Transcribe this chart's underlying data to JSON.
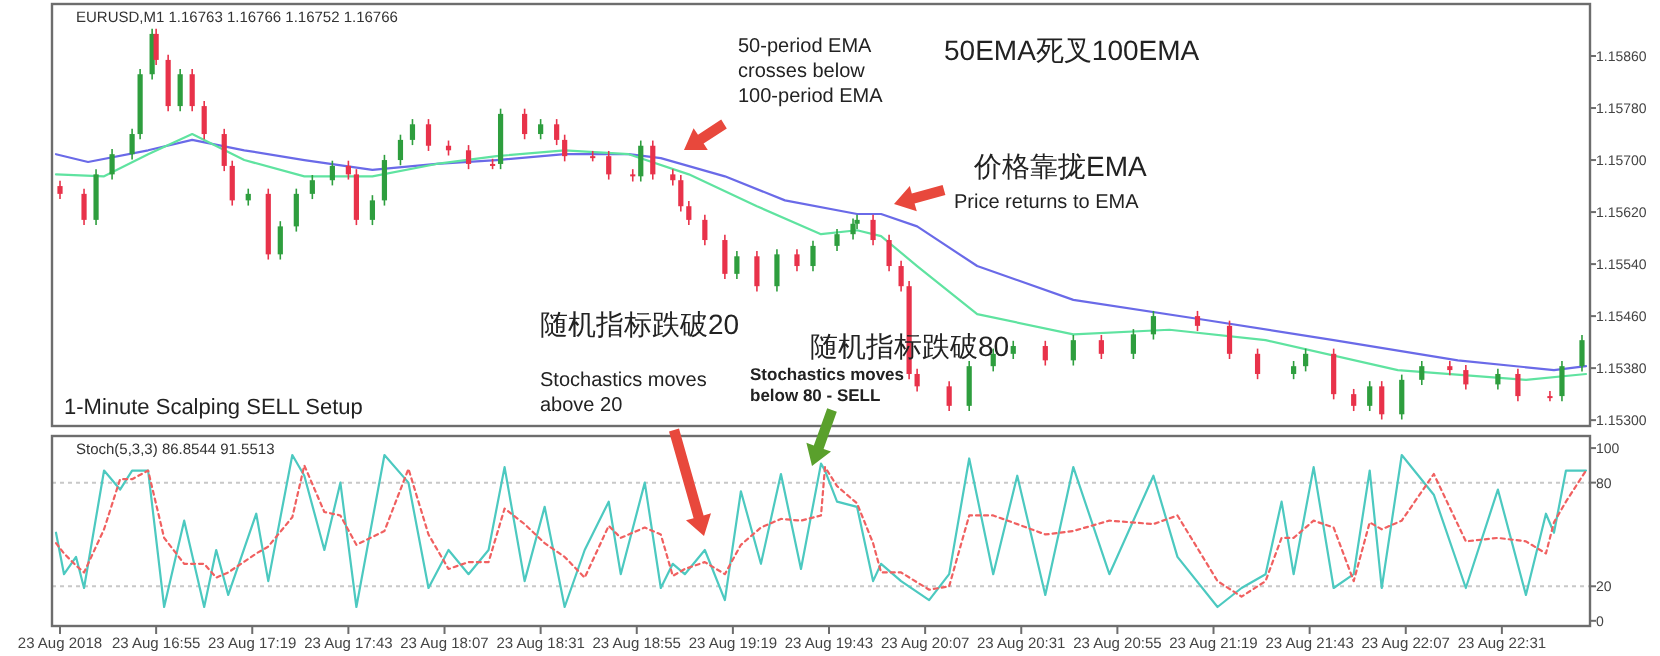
{
  "chart_data": [
    {
      "type": "candlestick",
      "title": "EURUSD,M1  1.16763 1.16766 1.16752 1.16766",
      "xlim": [
        "2018-08-23T16:29",
        "2018-08-23T22:53"
      ],
      "ylim": [
        1.15291,
        1.1594
      ],
      "tick_labels": "y",
      "yticks": [
        {
          "value": 1.153,
          "label": "1.15300"
        },
        {
          "value": 1.1538,
          "label": "1.15380"
        },
        {
          "value": 1.1546,
          "label": "1.15460"
        },
        {
          "value": 1.1554,
          "label": "1.15540"
        },
        {
          "value": 1.1562,
          "label": "1.15620"
        },
        {
          "value": 1.157,
          "label": "1.15700"
        },
        {
          "value": 1.1578,
          "label": "1.15780"
        },
        {
          "value": 1.1586,
          "label": "1.15860"
        }
      ],
      "x": [
        "2018-08-23T16:31",
        "2018-08-23T16:37",
        "2018-08-23T16:40",
        "2018-08-23T16:44",
        "2018-08-23T16:49",
        "2018-08-23T16:51",
        "2018-08-23T16:54",
        "2018-08-23T16:55",
        "2018-08-23T16:58",
        "2018-08-23T17:01",
        "2018-08-23T17:04",
        "2018-08-23T17:07",
        "2018-08-23T17:12",
        "2018-08-23T17:14",
        "2018-08-23T17:18",
        "2018-08-23T17:23",
        "2018-08-23T17:26",
        "2018-08-23T17:30",
        "2018-08-23T17:34",
        "2018-08-23T17:39",
        "2018-08-23T17:43",
        "2018-08-23T17:45",
        "2018-08-23T17:49",
        "2018-08-23T17:52",
        "2018-08-23T17:56",
        "2018-08-23T17:59",
        "2018-08-23T18:03",
        "2018-08-23T18:08",
        "2018-08-23T18:13",
        "2018-08-23T18:19",
        "2018-08-23T18:21",
        "2018-08-23T18:27",
        "2018-08-23T18:31",
        "2018-08-23T18:35",
        "2018-08-23T18:37",
        "2018-08-23T18:44",
        "2018-08-23T18:48",
        "2018-08-23T18:54",
        "2018-08-23T18:56",
        "2018-08-23T18:59",
        "2018-08-23T19:04",
        "2018-08-23T19:06",
        "2018-08-23T19:08",
        "2018-08-23T19:12",
        "2018-08-23T19:17",
        "2018-08-23T19:20",
        "2018-08-23T19:25",
        "2018-08-23T19:30",
        "2018-08-23T19:35",
        "2018-08-23T19:39",
        "2018-08-23T19:45",
        "2018-08-23T19:49",
        "2018-08-23T19:50",
        "2018-08-23T19:54",
        "2018-08-23T19:58",
        "2018-08-23T20:01",
        "2018-08-23T20:03",
        "2018-08-23T20:05",
        "2018-08-23T20:13",
        "2018-08-23T20:18",
        "2018-08-23T20:24",
        "2018-08-23T20:29",
        "2018-08-23T20:37",
        "2018-08-23T20:44",
        "2018-08-23T20:51",
        "2018-08-23T20:59",
        "2018-08-23T21:04",
        "2018-08-23T21:15",
        "2018-08-23T21:23",
        "2018-08-23T21:30",
        "2018-08-23T21:39",
        "2018-08-23T21:42",
        "2018-08-23T21:49",
        "2018-08-23T21:54",
        "2018-08-23T21:58",
        "2018-08-23T22:01",
        "2018-08-23T22:06",
        "2018-08-23T22:11",
        "2018-08-23T22:18",
        "2018-08-23T22:22",
        "2018-08-23T22:30",
        "2018-08-23T22:35",
        "2018-08-23T22:43",
        "2018-08-23T22:46",
        "2018-08-23T22:51"
      ],
      "ohlc": [
        [
          1.1566,
          1.15668,
          1.1564,
          1.15648
        ],
        [
          1.15648,
          1.15656,
          1.156,
          1.15608
        ],
        [
          1.15608,
          1.15686,
          1.156,
          1.15678
        ],
        [
          1.15678,
          1.15717,
          1.1567,
          1.15709
        ],
        [
          1.15709,
          1.15748,
          1.15701,
          1.1574
        ],
        [
          1.1574,
          1.1584,
          1.15732,
          1.15832
        ],
        [
          1.15832,
          1.15902,
          1.15824,
          1.15894
        ],
        [
          1.15894,
          1.15902,
          1.15846,
          1.15854
        ],
        [
          1.15854,
          1.15862,
          1.15775,
          1.15783
        ],
        [
          1.15783,
          1.1584,
          1.15775,
          1.15832
        ],
        [
          1.15832,
          1.1584,
          1.15775,
          1.15783
        ],
        [
          1.15783,
          1.15791,
          1.15732,
          1.1574
        ],
        [
          1.1574,
          1.15748,
          1.15683,
          1.15691
        ],
        [
          1.15691,
          1.15699,
          1.1563,
          1.15638
        ],
        [
          1.15638,
          1.15656,
          1.1563,
          1.15648
        ],
        [
          1.15648,
          1.15656,
          1.15547,
          1.15555
        ],
        [
          1.15555,
          1.15606,
          1.15547,
          1.15598
        ],
        [
          1.15598,
          1.15656,
          1.1559,
          1.15648
        ],
        [
          1.15648,
          1.15677,
          1.1564,
          1.15669
        ],
        [
          1.15669,
          1.15699,
          1.15661,
          1.15691
        ],
        [
          1.15691,
          1.15699,
          1.1567,
          1.15678
        ],
        [
          1.15678,
          1.15686,
          1.156,
          1.15608
        ],
        [
          1.15608,
          1.15646,
          1.156,
          1.15638
        ],
        [
          1.15638,
          1.15708,
          1.1563,
          1.157
        ],
        [
          1.157,
          1.15739,
          1.15692,
          1.15731
        ],
        [
          1.15731,
          1.15763,
          1.15723,
          1.15755
        ],
        [
          1.15755,
          1.15763,
          1.15714,
          1.15722
        ],
        [
          1.15722,
          1.1573,
          1.15707,
          1.15715
        ],
        [
          1.15715,
          1.15723,
          1.15686,
          1.15694
        ],
        [
          1.15694,
          1.15702,
          1.15686,
          1.15694
        ],
        [
          1.15694,
          1.15779,
          1.15686,
          1.15771
        ],
        [
          1.15771,
          1.15779,
          1.15732,
          1.1574
        ],
        [
          1.1574,
          1.15763,
          1.15732,
          1.15755
        ],
        [
          1.15755,
          1.15763,
          1.15723,
          1.15731
        ],
        [
          1.15731,
          1.15739,
          1.15698,
          1.15706
        ],
        [
          1.15706,
          1.15714,
          1.15698,
          1.15706
        ],
        [
          1.15706,
          1.15714,
          1.1567,
          1.15678
        ],
        [
          1.15678,
          1.15686,
          1.15667,
          1.15675
        ],
        [
          1.15675,
          1.1573,
          1.15667,
          1.15722
        ],
        [
          1.15722,
          1.1573,
          1.1567,
          1.15678
        ],
        [
          1.15678,
          1.15686,
          1.15661,
          1.15669
        ],
        [
          1.15669,
          1.15677,
          1.15621,
          1.15629
        ],
        [
          1.15629,
          1.15637,
          1.156,
          1.15608
        ],
        [
          1.15608,
          1.15616,
          1.15569,
          1.15577
        ],
        [
          1.15577,
          1.15585,
          1.15517,
          1.15525
        ],
        [
          1.15525,
          1.1556,
          1.15517,
          1.15552
        ],
        [
          1.15552,
          1.1556,
          1.15498,
          1.15506
        ],
        [
          1.15506,
          1.15563,
          1.15498,
          1.15555
        ],
        [
          1.15555,
          1.15563,
          1.15529,
          1.15537
        ],
        [
          1.15537,
          1.15576,
          1.15529,
          1.15568
        ],
        [
          1.15568,
          1.15594,
          1.1556,
          1.15586
        ],
        [
          1.15586,
          1.1561,
          1.15578,
          1.15602
        ],
        [
          1.15602,
          1.15616,
          1.15594,
          1.15608
        ],
        [
          1.15608,
          1.15616,
          1.15569,
          1.15577
        ],
        [
          1.15577,
          1.15585,
          1.15529,
          1.15537
        ],
        [
          1.15537,
          1.15545,
          1.15498,
          1.15506
        ],
        [
          1.15506,
          1.15514,
          1.15363,
          1.15371
        ],
        [
          1.15371,
          1.15379,
          1.15344,
          1.15352
        ],
        [
          1.15352,
          1.1536,
          1.15314,
          1.15322
        ],
        [
          1.15322,
          1.15391,
          1.15314,
          1.15383
        ],
        [
          1.15383,
          1.1541,
          1.15375,
          1.15402
        ],
        [
          1.15402,
          1.15422,
          1.15394,
          1.15414
        ],
        [
          1.15414,
          1.15422,
          1.15384,
          1.15392
        ],
        [
          1.15392,
          1.15431,
          1.15384,
          1.15423
        ],
        [
          1.15423,
          1.15431,
          1.15394,
          1.15402
        ],
        [
          1.15402,
          1.1544,
          1.15394,
          1.15432
        ],
        [
          1.15432,
          1.15468,
          1.15424,
          1.1546
        ],
        [
          1.1546,
          1.15468,
          1.15437,
          1.15445
        ],
        [
          1.15445,
          1.15453,
          1.15394,
          1.15402
        ],
        [
          1.15402,
          1.1541,
          1.15363,
          1.15371
        ],
        [
          1.15371,
          1.15391,
          1.15363,
          1.15383
        ],
        [
          1.15383,
          1.1541,
          1.15375,
          1.15402
        ],
        [
          1.15402,
          1.1541,
          1.15332,
          1.1534
        ],
        [
          1.1534,
          1.15348,
          1.15314,
          1.15322
        ],
        [
          1.15322,
          1.1536,
          1.15314,
          1.15352
        ],
        [
          1.15352,
          1.1536,
          1.15301,
          1.15309
        ],
        [
          1.15309,
          1.1537,
          1.15301,
          1.15362
        ],
        [
          1.15362,
          1.15391,
          1.15354,
          1.15383
        ],
        [
          1.15383,
          1.15391,
          1.15369,
          1.15377
        ],
        [
          1.15377,
          1.15385,
          1.15347,
          1.15355
        ],
        [
          1.15355,
          1.15379,
          1.15347,
          1.15371
        ],
        [
          1.15371,
          1.15379,
          1.15329,
          1.15337
        ],
        [
          1.15337,
          1.15345,
          1.15329,
          1.15337
        ],
        [
          1.15337,
          1.15391,
          1.15329,
          1.15383
        ],
        [
          1.15383,
          1.15431,
          1.15375,
          1.15423
        ]
      ],
      "colors": [
        "#e8324a",
        "#e8324a",
        "#2e9e3e",
        "#2e9e3e",
        "#2e9e3e",
        "#2e9e3e",
        "#2e9e3e",
        "#e8324a",
        "#e8324a",
        "#2e9e3e",
        "#e8324a",
        "#e8324a",
        "#e8324a",
        "#e8324a",
        "#2e9e3e",
        "#e8324a",
        "#2e9e3e",
        "#2e9e3e",
        "#2e9e3e",
        "#2e9e3e",
        "#e8324a",
        "#e8324a",
        "#2e9e3e",
        "#2e9e3e",
        "#2e9e3e",
        "#2e9e3e",
        "#e8324a",
        "#e8324a",
        "#e8324a",
        "#e8324a",
        "#2e9e3e",
        "#e8324a",
        "#2e9e3e",
        "#e8324a",
        "#e8324a",
        "#e8324a",
        "#e8324a",
        "#e8324a",
        "#2e9e3e",
        "#e8324a",
        "#e8324a",
        "#e8324a",
        "#e8324a",
        "#e8324a",
        "#e8324a",
        "#2e9e3e",
        "#e8324a",
        "#2e9e3e",
        "#e8324a",
        "#2e9e3e",
        "#2e9e3e",
        "#2e9e3e",
        "#2e9e3e",
        "#e8324a",
        "#e8324a",
        "#e8324a",
        "#e8324a",
        "#e8324a",
        "#e8324a",
        "#2e9e3e",
        "#2e9e3e",
        "#2e9e3e",
        "#e8324a",
        "#2e9e3e",
        "#e8324a",
        "#2e9e3e",
        "#2e9e3e",
        "#e8324a",
        "#e8324a",
        "#e8324a",
        "#2e9e3e",
        "#2e9e3e",
        "#e8324a",
        "#e8324a",
        "#2e9e3e",
        "#e8324a",
        "#2e9e3e",
        "#2e9e3e",
        "#e8324a",
        "#e8324a",
        "#2e9e3e",
        "#e8324a",
        "#e8324a",
        "#2e9e3e",
        "#2e9e3e"
      ],
      "series": [
        {
          "type": "line",
          "color": "#6a6ae8",
          "x": [
            "2018-08-23T16:30",
            "2018-08-23T16:38",
            "2018-08-23T16:53",
            "2018-08-23T17:04",
            "2018-08-23T17:17",
            "2018-08-23T17:32",
            "2018-08-23T17:49",
            "2018-08-23T18:05",
            "2018-08-23T18:20",
            "2018-08-23T18:37",
            "2018-08-23T18:53",
            "2018-08-23T19:01",
            "2018-08-23T19:17",
            "2018-08-23T19:32",
            "2018-08-23T19:50",
            "2018-08-23T19:56",
            "2018-08-23T20:05",
            "2018-08-23T20:20",
            "2018-08-23T20:44",
            "2018-08-23T21:17",
            "2018-08-23T21:49",
            "2018-08-23T22:20",
            "2018-08-23T22:44",
            "2018-08-23T22:52"
          ],
          "values": [
            1.15709,
            1.15697,
            1.15715,
            1.15731,
            1.15715,
            1.157,
            1.15685,
            1.15694,
            1.157,
            1.15709,
            1.15709,
            1.15703,
            1.15675,
            1.15638,
            1.15617,
            1.15617,
            1.15598,
            1.15537,
            1.15485,
            1.15454,
            1.15423,
            1.15392,
            1.15377,
            1.15383
          ]
        },
        {
          "type": "line",
          "color": "#5fe3a0",
          "x": [
            "2018-08-23T16:30",
            "2018-08-23T16:42",
            "2018-08-23T16:53",
            "2018-08-23T17:04",
            "2018-08-23T17:17",
            "2018-08-23T17:32",
            "2018-08-23T17:49",
            "2018-08-23T18:05",
            "2018-08-23T18:20",
            "2018-08-23T18:37",
            "2018-08-23T18:53",
            "2018-08-23T19:08",
            "2018-08-23T19:25",
            "2018-08-23T19:41",
            "2018-08-23T19:50",
            "2018-08-23T19:56",
            "2018-08-23T20:05",
            "2018-08-23T20:20",
            "2018-08-23T20:44",
            "2018-08-23T21:08",
            "2018-08-23T21:32",
            "2018-08-23T22:05",
            "2018-08-23T22:37",
            "2018-08-23T22:52"
          ],
          "values": [
            1.15678,
            1.15675,
            1.15709,
            1.1574,
            1.157,
            1.15675,
            1.15675,
            1.15694,
            1.15706,
            1.15715,
            1.15709,
            1.15678,
            1.15629,
            1.15586,
            1.15592,
            1.15583,
            1.15537,
            1.15463,
            1.15432,
            1.15439,
            1.15423,
            1.15377,
            1.15362,
            1.15371
          ]
        }
      ],
      "annotations": [
        "1-Minute Scalping SELL Setup",
        "50-period EMA crosses below 100-period EMA",
        "50EMA死叉100EMA",
        "价格靠拢EMA",
        "Price returns to EMA",
        "随机指标跌破20",
        "Stochastics moves above 20",
        "随机指标跌破80",
        "Stochastics moves below 80 - SELL"
      ]
    },
    {
      "type": "line",
      "title": "Stoch(5,3,3) 86.8544 91.5513",
      "xlim": [
        "2018-08-23T16:29",
        "2018-08-23T22:53"
      ],
      "ylim": [
        -3,
        107
      ],
      "yticks": [
        0,
        20,
        80,
        100
      ],
      "xticks": [
        {
          "value": "2018-08-23T16:31",
          "label": "23 Aug 2018"
        },
        {
          "value": "2018-08-23T16:55",
          "label": "23 Aug 16:55"
        },
        {
          "value": "2018-08-23T17:19",
          "label": "23 Aug 17:19"
        },
        {
          "value": "2018-08-23T17:43",
          "label": "23 Aug 17:43"
        },
        {
          "value": "2018-08-23T18:07",
          "label": "23 Aug 18:07"
        },
        {
          "value": "2018-08-23T18:31",
          "label": "23 Aug 18:31"
        },
        {
          "value": "2018-08-23T18:55",
          "label": "23 Aug 18:55"
        },
        {
          "value": "2018-08-23T19:19",
          "label": "23 Aug 19:19"
        },
        {
          "value": "2018-08-23T19:43",
          "label": "23 Aug 19:43"
        },
        {
          "value": "2018-08-23T20:07",
          "label": "23 Aug 20:07"
        },
        {
          "value": "2018-08-23T20:31",
          "label": "23 Aug 20:31"
        },
        {
          "value": "2018-08-23T20:55",
          "label": "23 Aug 20:55"
        },
        {
          "value": "2018-08-23T21:19",
          "label": "23 Aug 21:19"
        },
        {
          "value": "2018-08-23T21:43",
          "label": "23 Aug 21:43"
        },
        {
          "value": "2018-08-23T22:07",
          "label": "23 Aug 22:07"
        },
        {
          "value": "2018-08-23T22:31",
          "label": "23 Aug 22:31"
        }
      ],
      "ref_lines": [
        {
          "axis": "y",
          "value": 20,
          "color": "#c8c8c8",
          "line_style": "dotted"
        },
        {
          "axis": "y",
          "value": 80,
          "color": "#c8c8c8",
          "line_style": "dotted"
        }
      ],
      "series": [
        {
          "color": "#4cc9c0",
          "line_style": "solid",
          "x": [
            "2018-08-23T16:30",
            "2018-08-23T16:32",
            "2018-08-23T16:35",
            "2018-08-23T16:37",
            "2018-08-23T16:42",
            "2018-08-23T16:46",
            "2018-08-23T16:49",
            "2018-08-23T16:53",
            "2018-08-23T16:57",
            "2018-08-23T17:02",
            "2018-08-23T17:07",
            "2018-08-23T17:10",
            "2018-08-23T17:13",
            "2018-08-23T17:20",
            "2018-08-23T17:23",
            "2018-08-23T17:29",
            "2018-08-23T17:32",
            "2018-08-23T17:37",
            "2018-08-23T17:41",
            "2018-08-23T17:45",
            "2018-08-23T17:52",
            "2018-08-23T17:58",
            "2018-08-23T18:03",
            "2018-08-23T18:08",
            "2018-08-23T18:13",
            "2018-08-23T18:18",
            "2018-08-23T18:22",
            "2018-08-23T18:27",
            "2018-08-23T18:32",
            "2018-08-23T18:37",
            "2018-08-23T18:42",
            "2018-08-23T18:48",
            "2018-08-23T18:51",
            "2018-08-23T18:57",
            "2018-08-23T19:01",
            "2018-08-23T19:04",
            "2018-08-23T19:07",
            "2018-08-23T19:12",
            "2018-08-23T19:17",
            "2018-08-23T19:21",
            "2018-08-23T19:26",
            "2018-08-23T19:31",
            "2018-08-23T19:36",
            "2018-08-23T19:41",
            "2018-08-23T19:42",
            "2018-08-23T19:45",
            "2018-08-23T19:50",
            "2018-08-23T19:54",
            "2018-08-23T19:56",
            "2018-08-23T20:01",
            "2018-08-23T20:08",
            "2018-08-23T20:13",
            "2018-08-23T20:18",
            "2018-08-23T20:24",
            "2018-08-23T20:30",
            "2018-08-23T20:37",
            "2018-08-23T20:44",
            "2018-08-23T20:53",
            "2018-08-23T21:04",
            "2018-08-23T21:10",
            "2018-08-23T21:20",
            "2018-08-23T21:26",
            "2018-08-23T21:32",
            "2018-08-23T21:36",
            "2018-08-23T21:39",
            "2018-08-23T21:44",
            "2018-08-23T21:49",
            "2018-08-23T21:54",
            "2018-08-23T21:58",
            "2018-08-23T22:01",
            "2018-08-23T22:06",
            "2018-08-23T22:14",
            "2018-08-23T22:22",
            "2018-08-23T22:30",
            "2018-08-23T22:37",
            "2018-08-23T22:42",
            "2018-08-23T22:44",
            "2018-08-23T22:47",
            "2018-08-23T22:52"
          ],
          "values": [
            51,
            27,
            37,
            19,
            87,
            76,
            87,
            87,
            8,
            58,
            8,
            41,
            15,
            62,
            23,
            96,
            84,
            41,
            80,
            8,
            96,
            80,
            19,
            41,
            27,
            41,
            89,
            23,
            66,
            8,
            41,
            69,
            27,
            80,
            19,
            33,
            27,
            41,
            12,
            75,
            33,
            85,
            30,
            91,
            87,
            69,
            66,
            23,
            33,
            23,
            12,
            27,
            94,
            27,
            84,
            15,
            89,
            27,
            84,
            37,
            8,
            19,
            27,
            69,
            27,
            89,
            19,
            27,
            87,
            19,
            96,
            73,
            19,
            76,
            15,
            62,
            51,
            87,
            87
          ]
        },
        {
          "color": "#f06060",
          "line_style": "dotted",
          "x": [
            "2018-08-23T16:30",
            "2018-08-23T16:32",
            "2018-08-23T16:35",
            "2018-08-23T16:37",
            "2018-08-23T16:42",
            "2018-08-23T16:46",
            "2018-08-23T16:49",
            "2018-08-23T16:53",
            "2018-08-23T16:57",
            "2018-08-23T17:02",
            "2018-08-23T17:07",
            "2018-08-23T17:10",
            "2018-08-23T17:13",
            "2018-08-23T17:20",
            "2018-08-23T17:23",
            "2018-08-23T17:29",
            "2018-08-23T17:32",
            "2018-08-23T17:37",
            "2018-08-23T17:41",
            "2018-08-23T17:45",
            "2018-08-23T17:52",
            "2018-08-23T17:58",
            "2018-08-23T18:03",
            "2018-08-23T18:08",
            "2018-08-23T18:13",
            "2018-08-23T18:18",
            "2018-08-23T18:22",
            "2018-08-23T18:27",
            "2018-08-23T18:32",
            "2018-08-23T18:37",
            "2018-08-23T18:42",
            "2018-08-23T18:48",
            "2018-08-23T18:51",
            "2018-08-23T18:57",
            "2018-08-23T19:01",
            "2018-08-23T19:04",
            "2018-08-23T19:07",
            "2018-08-23T19:12",
            "2018-08-23T19:17",
            "2018-08-23T19:21",
            "2018-08-23T19:26",
            "2018-08-23T19:31",
            "2018-08-23T19:36",
            "2018-08-23T19:41",
            "2018-08-23T19:42",
            "2018-08-23T19:45",
            "2018-08-23T19:50",
            "2018-08-23T19:54",
            "2018-08-23T19:56",
            "2018-08-23T20:01",
            "2018-08-23T20:08",
            "2018-08-23T20:13",
            "2018-08-23T20:18",
            "2018-08-23T20:24",
            "2018-08-23T20:30",
            "2018-08-23T20:37",
            "2018-08-23T20:44",
            "2018-08-23T20:53",
            "2018-08-23T21:04",
            "2018-08-23T21:10",
            "2018-08-23T21:20",
            "2018-08-23T21:26",
            "2018-08-23T21:32",
            "2018-08-23T21:36",
            "2018-08-23T21:39",
            "2018-08-23T21:44",
            "2018-08-23T21:49",
            "2018-08-23T21:54",
            "2018-08-23T21:58",
            "2018-08-23T22:01",
            "2018-08-23T22:06",
            "2018-08-23T22:14",
            "2018-08-23T22:22",
            "2018-08-23T22:30",
            "2018-08-23T22:37",
            "2018-08-23T22:42",
            "2018-08-23T22:44",
            "2018-08-23T22:47",
            "2018-08-23T22:52"
          ],
          "values": [
            45,
            39,
            32,
            28,
            53,
            82,
            82,
            87,
            48,
            33,
            33,
            25,
            28,
            39,
            43,
            60,
            90,
            63,
            61,
            44,
            52,
            88,
            50,
            30,
            34,
            34,
            65,
            56,
            45,
            37,
            25,
            55,
            48,
            54,
            50,
            26,
            30,
            34,
            27,
            44,
            54,
            59,
            58,
            61,
            89,
            78,
            68,
            45,
            28,
            28,
            18,
            20,
            61,
            61,
            56,
            50,
            52,
            58,
            56,
            61,
            23,
            14,
            23,
            48,
            48,
            58,
            54,
            23,
            57,
            53,
            58,
            85,
            46,
            48,
            46,
            39,
            57,
            69,
            87
          ]
        }
      ]
    }
  ]
}
